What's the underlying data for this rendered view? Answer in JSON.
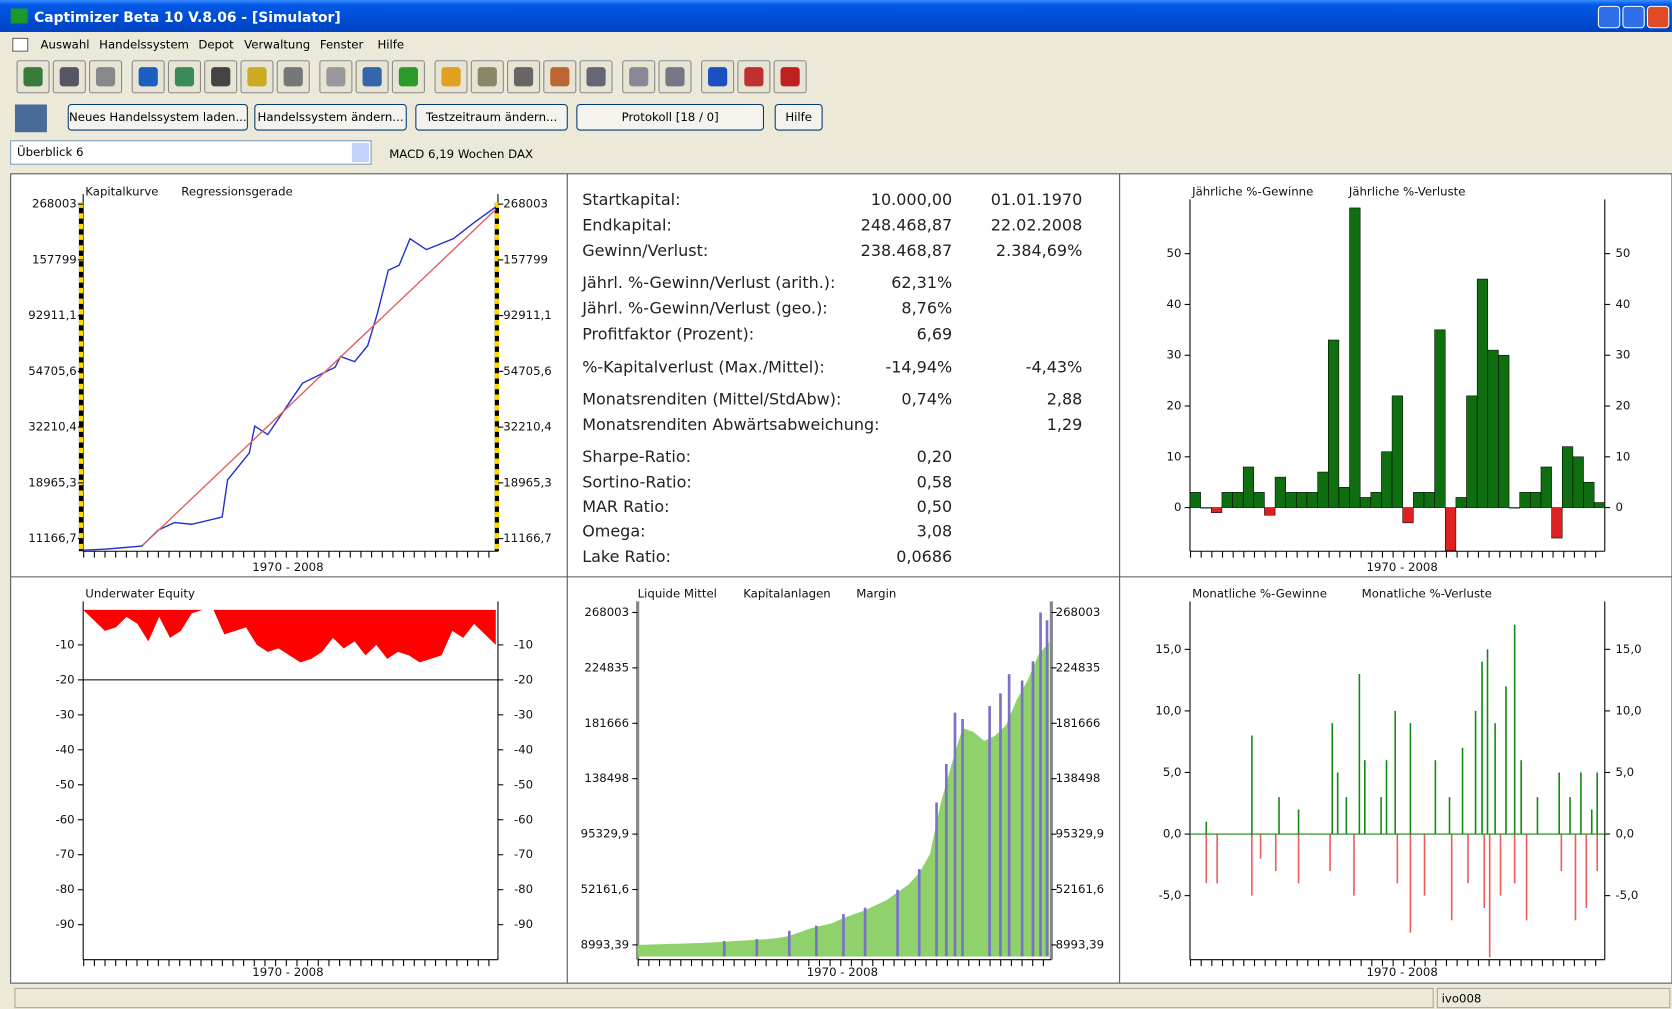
{
  "window": {
    "title": "Captimizer Beta 10 V.8.06 - [Simulator]"
  },
  "menu": [
    "Auswahl",
    "Handelssystem",
    "Depot",
    "Verwaltung",
    "Fenster",
    "Hilfe"
  ],
  "buttons": [
    "Neues Handelssystem laden...",
    "Handelssystem ändern...",
    "Testzeitraum ändern...",
    "Protokoll [18 / 0]",
    "Hilfe"
  ],
  "selector": "Überblick 6",
  "system": "MACD 6,19 Wochen DAX",
  "stats": [
    {
      "label": "Startkapital:",
      "value": "10.000,00",
      "extra": "01.01.1970"
    },
    {
      "label": "Endkapital:",
      "value": "248.468,87",
      "extra": "22.02.2008"
    },
    {
      "label": "Gewinn/Verlust:",
      "value": "238.468,87",
      "extra": "2.384,69%"
    },
    {
      "label": "Jährl. %-Gewinn/Verlust (arith.):",
      "value": "62,31%"
    },
    {
      "label": "Jährl. %-Gewinn/Verlust (geo.):",
      "value": "8,76%"
    },
    {
      "label": "Profitfaktor (Prozent):",
      "value": "6,69"
    },
    {
      "label": "%-Kapitalverlust (Max./Mittel):",
      "value": "-14,94%",
      "extra": "-4,43%"
    },
    {
      "label": "Monatsrenditen (Mittel/StdAbw):",
      "value": "0,74%",
      "extra": "2,88"
    },
    {
      "label": "Monatsrenditen Abwärtsabweichung:",
      "extra": "1,29"
    },
    {
      "label": "Sharpe-Ratio:",
      "value": "0,20"
    },
    {
      "label": "Sortino-Ratio:",
      "value": "0,58"
    },
    {
      "label": "MAR Ratio:",
      "value": "0,50"
    },
    {
      "label": "Omega:",
      "value": "3,08"
    },
    {
      "label": "Lake Ratio:",
      "value": "0,0686"
    }
  ],
  "chart_data": [
    {
      "type": "line",
      "scale": "log",
      "xlabel": "1970 - 2008",
      "xlim": [
        1970,
        2008.2
      ],
      "ylim": [
        9900,
        272000
      ],
      "yticks": [
        268003,
        157799,
        {
          "value": 92911.1,
          "label": "92911,1"
        },
        {
          "value": 54705.6,
          "label": "54705,6"
        },
        {
          "value": 32210.4,
          "label": "32210,4"
        },
        {
          "value": 18965.3,
          "label": "18965,3"
        },
        {
          "value": 11166.7,
          "label": "11166,7"
        }
      ],
      "series": [
        {
          "name": "Kapitalkurve",
          "color": "#1f2fd0",
          "x": [
            1970,
            1972,
            1975.4,
            1976.9,
            1978.4,
            1980,
            1982.8,
            1983.3,
            1985.3,
            1985.8,
            1987,
            1989.2,
            1990.2,
            1993.2,
            1993.7,
            1995,
            1996.2,
            1997.1,
            1998.1,
            1999.1,
            2000.1,
            2001.6,
            2004.1,
            2006,
            2008
          ],
          "values": [
            10000,
            10100,
            10400,
            12100,
            13000,
            12800,
            13700,
            19500,
            25200,
            32500,
            30000,
            42000,
            48900,
            56900,
            63000,
            60000,
            69800,
            95000,
            143000,
            150000,
            193000,
            174000,
            193000,
            225000,
            261000
          ]
        },
        {
          "name": "Regressionsgerade",
          "color": "#e06060",
          "x": [
            1975.5,
            2008
          ],
          "values": [
            10500,
            255000
          ]
        }
      ]
    },
    {
      "type": "bar",
      "xlabel": "1970 - 2008",
      "ylim": [
        -8.6,
        59
      ],
      "yticks": [
        0,
        10,
        20,
        30,
        40,
        50
      ],
      "series": [
        {
          "name": "Jährliche %-Gewinne",
          "color": "#0f6e0f",
          "values": [
            3,
            0,
            null,
            3,
            3,
            8,
            3,
            null,
            6,
            3,
            3,
            3,
            7,
            33,
            4,
            59,
            2,
            3,
            11,
            22,
            null,
            3,
            3,
            35,
            null,
            2,
            22,
            45,
            31,
            30,
            0,
            3,
            3,
            8,
            null,
            12,
            10,
            5,
            1
          ]
        },
        {
          "name": "Jährliche %-Verluste",
          "color": "#e02020",
          "values": [
            null,
            null,
            -1,
            null,
            null,
            null,
            null,
            -1.5,
            null,
            null,
            null,
            null,
            null,
            null,
            null,
            null,
            null,
            null,
            null,
            null,
            -3,
            null,
            null,
            null,
            -8.5,
            null,
            null,
            null,
            null,
            null,
            null,
            null,
            null,
            null,
            -6,
            null,
            null,
            null,
            null
          ]
        }
      ]
    },
    {
      "type": "area",
      "title": "Underwater Equity",
      "xlabel": "1970 - 2008",
      "xlim": [
        1970,
        2008.2
      ],
      "ylim": [
        -100,
        0
      ],
      "yticks": [
        -10,
        -20,
        -30,
        -40,
        -50,
        -60,
        -70,
        -80,
        -90
      ],
      "hline": -20,
      "color": "#ff0000",
      "x": [
        1970,
        1971,
        1972,
        1973,
        1974,
        1975,
        1976,
        1977,
        1978,
        1979,
        1980,
        1981,
        1982,
        1983,
        1984,
        1985,
        1986,
        1987,
        1988,
        1989,
        1990,
        1991,
        1992,
        1993,
        1994,
        1995,
        1996,
        1997,
        1998,
        1999,
        2000,
        2001,
        2002,
        2003,
        2004,
        2005,
        2006,
        2007,
        2008
      ],
      "values": [
        0,
        -3,
        -6,
        -5,
        -2,
        -4,
        -9,
        -2,
        -8,
        -6,
        -1,
        0,
        0,
        -7,
        -6,
        -5,
        -10,
        -12,
        -11,
        -13,
        -15,
        -14,
        -12,
        -8,
        -11,
        -9,
        -13,
        -10,
        -14,
        -12,
        -13,
        -15,
        -14,
        -13,
        -6,
        -8,
        -4,
        -7,
        -10
      ]
    },
    {
      "type": "area",
      "xlabel": "1970 - 2008",
      "xlim": [
        1970,
        2008.2
      ],
      "ylim": [
        -2500,
        270000
      ],
      "yticks": [
        268003,
        224835,
        181666,
        138498,
        {
          "value": 95329.9,
          "label": "95329,9"
        },
        {
          "value": 52161.6,
          "label": "52161,6"
        },
        {
          "value": 8993.39,
          "label": "8993,39"
        }
      ],
      "series": [
        {
          "name": "Liquide Mittel",
          "color": "#8fd16a",
          "x": [
            1970,
            1971,
            1972,
            1973,
            1974,
            1975,
            1976,
            1977,
            1978,
            1979,
            1980,
            1981,
            1982,
            1983,
            1984,
            1985,
            1986,
            1987,
            1988,
            1989,
            1990,
            1991,
            1992,
            1993,
            1994,
            1995,
            1996,
            1997,
            1998,
            1999,
            2000,
            2001,
            2002,
            2003,
            2004,
            2005,
            2006,
            2007,
            2008
          ],
          "values": [
            9000,
            9200,
            9500,
            9800,
            10000,
            10300,
            10600,
            11000,
            11500,
            12000,
            12500,
            13000,
            13500,
            14500,
            16000,
            19000,
            22000,
            24000,
            26000,
            30000,
            33000,
            36000,
            40000,
            44000,
            50000,
            56000,
            65000,
            80000,
            120000,
            150000,
            178000,
            175000,
            168000,
            172000,
            180000,
            200000,
            215000,
            235000,
            245000
          ]
        },
        {
          "name": "Kapitalanlagen",
          "color": "#7a72c8",
          "mark": "spike",
          "x": [
            1978,
            1981,
            1984,
            1986.5,
            1989,
            1991,
            1994,
            1996,
            1997.6,
            1998.5,
            1999.3,
            2000,
            2002.5,
            2003.5,
            2004.3,
            2005.5,
            2006.5,
            2007.2,
            2007.8
          ],
          "values": [
            12000,
            13500,
            20000,
            24000,
            33000,
            38000,
            52000,
            68000,
            120000,
            150000,
            190000,
            185000,
            195000,
            205000,
            220000,
            215000,
            230000,
            268000,
            262000
          ]
        },
        {
          "name": "Margin",
          "color": "#ff2020",
          "x": [],
          "values": []
        }
      ]
    },
    {
      "type": "bar",
      "xlabel": "1970 - 2008",
      "xlim": [
        1970,
        2008.2
      ],
      "ylim": [
        -10.2,
        18.2
      ],
      "yticks": [
        {
          "value": 15,
          "label": "15,0"
        },
        {
          "value": 10,
          "label": "10,0"
        },
        {
          "value": 5,
          "label": "5,0"
        },
        {
          "value": 0,
          "label": "0,0"
        },
        {
          "value": -5,
          "label": "-5,0"
        }
      ],
      "series": [
        {
          "name": "Monatliche %-Gewinne",
          "color": "#138a13",
          "x": [
            1971.5,
            1975.7,
            1978.2,
            1980,
            1983.1,
            1983.6,
            1984.4,
            1985.6,
            1986.1,
            1987.6,
            1988.1,
            1988.9,
            1990.3,
            1992.6,
            1993.9,
            1995.1,
            1996.3,
            1996.9,
            1997.4,
            1998.1,
            1999.1,
            1999.9,
            2000.5,
            2002,
            2004,
            2005,
            2006,
            2007,
            2007.5
          ],
          "values": [
            1,
            8,
            3,
            2,
            9,
            5,
            3,
            13,
            6,
            3,
            6,
            10,
            9,
            6,
            3,
            7,
            10,
            14,
            15,
            9,
            12,
            17,
            6,
            3,
            5,
            3,
            5,
            2,
            5
          ]
        },
        {
          "name": "Monatliche %-Verluste",
          "color": "#ef5a5a",
          "x": [
            1971.5,
            1972.5,
            1975.7,
            1976.5,
            1977.9,
            1980,
            1982.9,
            1985.1,
            1989.1,
            1990.3,
            1991.6,
            1994.1,
            1995.6,
            1997.1,
            1997.6,
            1998.6,
            1999.9,
            2001,
            2004.2,
            2005.5,
            2006.5,
            2007.5
          ],
          "values": [
            -4,
            -4,
            -5,
            -2,
            -3,
            -4,
            -3,
            -5,
            -4,
            -8,
            -5,
            -7,
            -4,
            -6,
            -10,
            -5,
            -4,
            -7,
            -3,
            -7,
            -6,
            -3
          ]
        }
      ]
    }
  ],
  "status": "ivo008"
}
